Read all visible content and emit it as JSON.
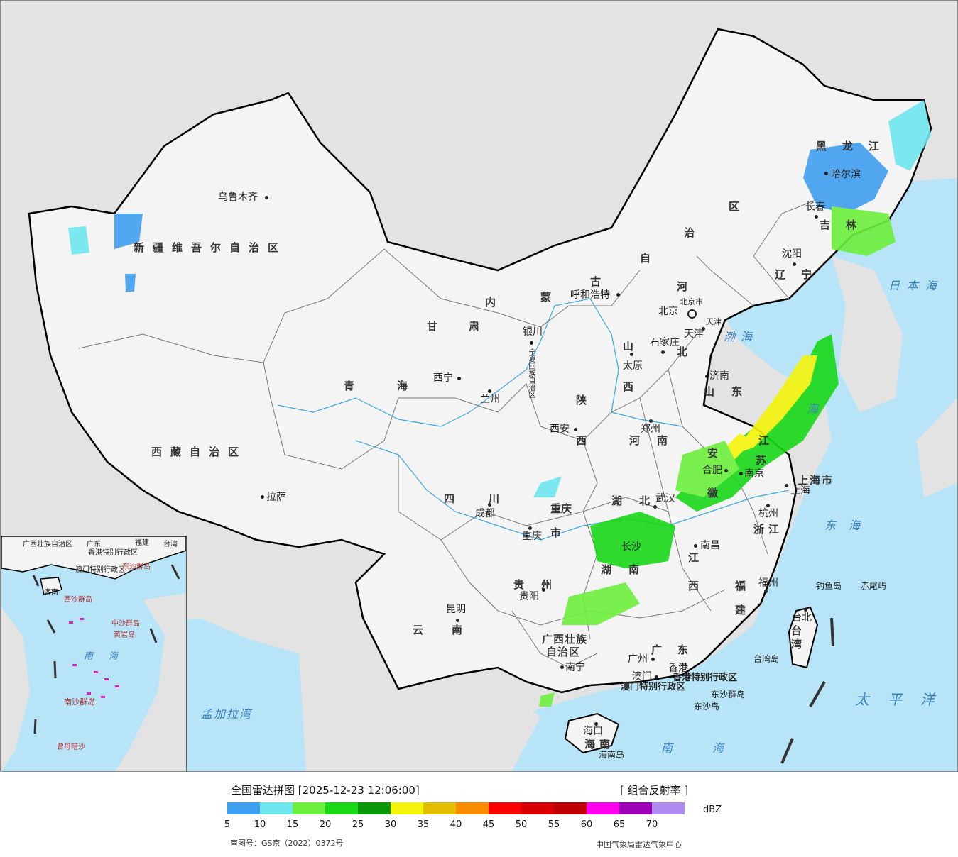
{
  "map": {
    "cities": {
      "beijing": "北京",
      "beijing_city": "北京市",
      "tianjin": "天津",
      "tianjin_city": "天津",
      "shijiazhuang": "石家庄",
      "taiyuan": "太原",
      "hohhot": "呼和浩特",
      "shenyang": "沈阳",
      "changchun": "长春",
      "harbin": "哈尔滨",
      "jinan": "济南",
      "zhengzhou": "郑州",
      "xian": "西安",
      "yinchuan": "银川",
      "lanzhou": "兰州",
      "xining": "西宁",
      "urumqi": "乌鲁木齐",
      "lhasa": "拉萨",
      "chengdu": "成都",
      "chongqing": "重庆",
      "guiyang": "贵阳",
      "kunming": "昆明",
      "nanning": "南宁",
      "guangzhou": "广州",
      "hongkong": "香港",
      "macau": "澳门",
      "haikou": "海口",
      "wuhan": "武汉",
      "changsha": "长沙",
      "nanchang": "南昌",
      "hefei": "合肥",
      "nanjing": "南京",
      "shanghai": "上海",
      "hangzhou": "杭州",
      "fuzhou": "福州",
      "taipei": "台北"
    },
    "provinces": {
      "xinjiang": "新疆维吾尔自治区",
      "xizang": "西藏自治区",
      "qinghai": "青海",
      "gansu": "甘肃",
      "neimenggu_1": "内",
      "neimenggu_2": "蒙",
      "neimenggu_3": "古",
      "neimenggu_4": "自",
      "neimenggu_5": "治",
      "neimenggu_6": "区",
      "ningxia": "宁夏回族自治区",
      "heilongjiang": "黑龙江",
      "jilin": "吉林",
      "liaoning": "辽宁",
      "hebei_1": "河",
      "hebei_2": "北",
      "shandong": "山东",
      "shanxi_1": "山",
      "shanxi_2": "西",
      "shaanxi_1": "陕",
      "shaanxi_2": "西",
      "henan": "河南",
      "jiangsu_1": "江",
      "jiangsu_2": "苏",
      "anhui_1": "安",
      "anhui_2": "徽",
      "shanghai_city": "上海市",
      "zhejiang": "浙江",
      "hubei": "湖北",
      "hunan": "湖南",
      "jiangxi_1": "江",
      "jiangxi_2": "西",
      "fujian_1": "福",
      "fujian_2": "建",
      "sichuan": "四川",
      "chongqing_1": "重庆",
      "chongqing_2": "市",
      "guizhou": "贵州",
      "yunnan": "云南",
      "guangxi_1": "广西壮族",
      "guangxi_2": "自治区",
      "guangdong": "广东",
      "hainan": "海南",
      "taiwan": "台湾",
      "hk_sar": "香港特别行政区",
      "macau_sar": "澳门特别行政区"
    },
    "seas": {
      "bohai": "渤海",
      "huanghai": "海",
      "donghai": "东海",
      "nanhai": "南海",
      "riben": "日本海",
      "taipingyang": "太平洋",
      "mengjiala": "孟加拉湾"
    },
    "islands": {
      "diaoyu": "钓鱼岛",
      "chiwei": "赤尾屿",
      "taiwan_island": "台湾岛",
      "hainan_island": "海南岛",
      "dongsha": "东沙群岛",
      "dongsha_dao": "东沙岛"
    }
  },
  "inset": {
    "labels": {
      "gx": "广西壮族自治区",
      "gd": "广东",
      "fj": "福建",
      "tw": "台湾",
      "hk": "香港特别行政区",
      "mo": "澳门特别行政区",
      "hk2": "东沙群岛",
      "hn": "海南",
      "xisha": "西沙群岛",
      "zhongsha": "中沙群岛",
      "huangyan": "黄岩岛",
      "nanhai": "南海",
      "nansha": "南沙群岛",
      "zengmu": "曾母暗沙"
    }
  },
  "legend": {
    "title": "全国雷达拼图 [2025-12-23 12:06:00]",
    "product": "[ 组合反射率 ]",
    "unit": "dBZ",
    "ticks": [
      "5",
      "10",
      "15",
      "20",
      "25",
      "30",
      "35",
      "40",
      "45",
      "50",
      "55",
      "60",
      "65",
      "70"
    ],
    "colors": [
      "#3f9ff0",
      "#6ee6ee",
      "#6cf03c",
      "#18d818",
      "#0a980a",
      "#f4f40a",
      "#e4c000",
      "#fa8c00",
      "#ff0000",
      "#d60000",
      "#c00000",
      "#ff00ef",
      "#9c00b4",
      "#b08cf0"
    ],
    "approval": "审图号：GS京（2022）0372号",
    "source": "中国气象局雷达气象中心"
  }
}
